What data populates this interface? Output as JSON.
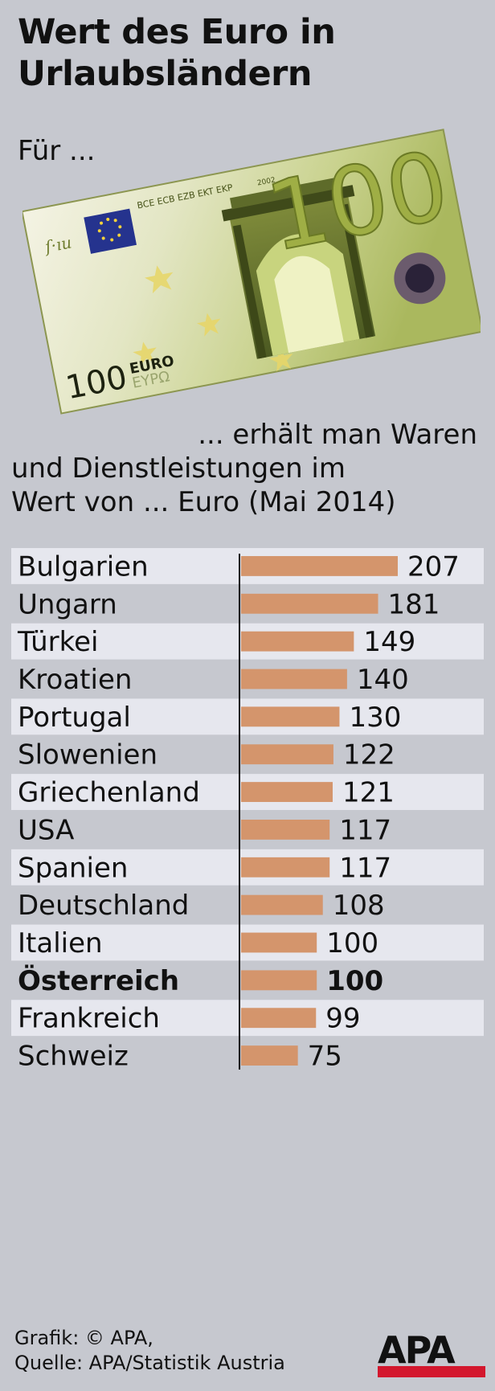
{
  "header": {
    "title_line1": "Wert des Euro in",
    "title_line2": "Urlaubsländern",
    "for_label": "Für ..."
  },
  "banknote": {
    "denomination": "100",
    "currency_text": "EURO",
    "currency_text_greek": "EYPΩ",
    "bank_initials": "BCE ECB EZB EKT EKP",
    "year": "2002"
  },
  "result_label": {
    "line1": "... erhält man Waren",
    "line2": "und Dienstleistungen im",
    "line3": "Wert von ... Euro (Mai 2014)"
  },
  "chart_data": {
    "type": "bar",
    "orientation": "horizontal",
    "categories": [
      "Bulgarien",
      "Ungarn",
      "Türkei",
      "Kroatien",
      "Portugal",
      "Slowenien",
      "Griechenland",
      "USA",
      "Spanien",
      "Deutschland",
      "Italien",
      "Österreich",
      "Frankreich",
      "Schweiz"
    ],
    "values": [
      207,
      181,
      149,
      140,
      130,
      122,
      121,
      117,
      117,
      108,
      100,
      100,
      99,
      75
    ],
    "highlight": "Österreich",
    "title": "Wert des Euro in Urlaubsländern",
    "xlabel": "",
    "ylabel": "",
    "data_labels": true,
    "grid": false,
    "colors": {
      "bar": "#d4956c",
      "row_stripe": "#e6e7ee",
      "background": "#c6c8cf",
      "axis": "#111111"
    }
  },
  "footer": {
    "source_line1": "Grafik: © APA,",
    "source_line2": "Quelle: APA/Statistik Austria",
    "logo_text": "APA",
    "logo_color": "#d3172d"
  }
}
